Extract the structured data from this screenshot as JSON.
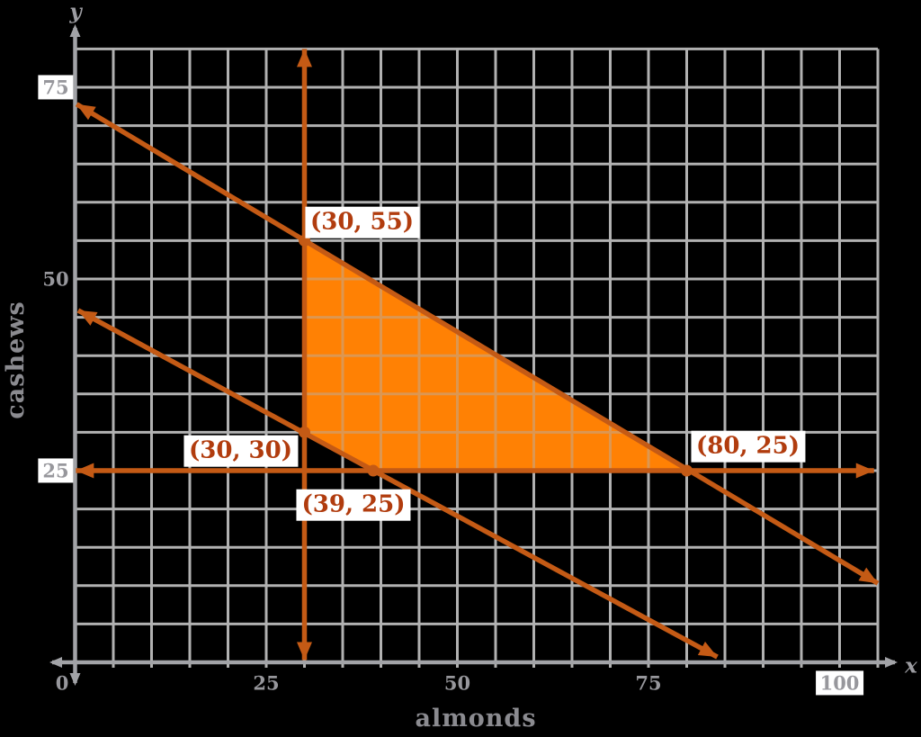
{
  "chart_data": {
    "type": "line",
    "title": "",
    "xlabel": "almonds",
    "ylabel": "cashews",
    "x_var": "x",
    "y_var": "y",
    "xlim": [
      0,
      105
    ],
    "ylim": [
      0,
      80
    ],
    "grid_step": 5,
    "grid": true,
    "x_ticks": [
      0,
      25,
      50,
      75,
      100
    ],
    "y_ticks": [
      25,
      50,
      75
    ],
    "boxed_x_ticks": [
      100
    ],
    "boxed_y_ticks": [
      25,
      75
    ],
    "points": [
      {
        "x": 30,
        "y": 55,
        "label": "(30, 55)"
      },
      {
        "x": 30,
        "y": 30,
        "label": "(30, 30)"
      },
      {
        "x": 39,
        "y": 25,
        "label": "(39, 25)"
      },
      {
        "x": 80,
        "y": 25,
        "label": "(80, 25)"
      }
    ],
    "feasible_region_vertices": [
      [
        30,
        55
      ],
      [
        80,
        25
      ],
      [
        39,
        25
      ],
      [
        30,
        30
      ]
    ],
    "constraint_lines": [
      {
        "name": "vertical-line-x-equals-30",
        "from": [
          30,
          0.3
        ],
        "to": [
          30,
          80
        ]
      },
      {
        "name": "horizontal-line-y-equals-25",
        "from": [
          0.1,
          25
        ],
        "to": [
          104.5,
          25
        ]
      },
      {
        "name": "diagonal-line-through-30-55-and-80-25",
        "from": [
          0.2,
          72.8
        ],
        "to": [
          105,
          10.3
        ]
      },
      {
        "name": "diagonal-line-through-30-30-and-39-25",
        "from": [
          0.4,
          45.9
        ],
        "to": [
          84,
          0.7
        ]
      }
    ],
    "colors": {
      "background": "#000000",
      "grid": "#b1b1b1",
      "axis": "#a2a3a7",
      "tick_text": "#97979c",
      "axis_title_text": "#8b8b90",
      "axis_var_text": "#9c9ca1",
      "line_orange": "#c45a15",
      "region_fill": "#ff8104",
      "point_label_text": "#b13c0e",
      "label_bg": "#ffffff"
    }
  }
}
